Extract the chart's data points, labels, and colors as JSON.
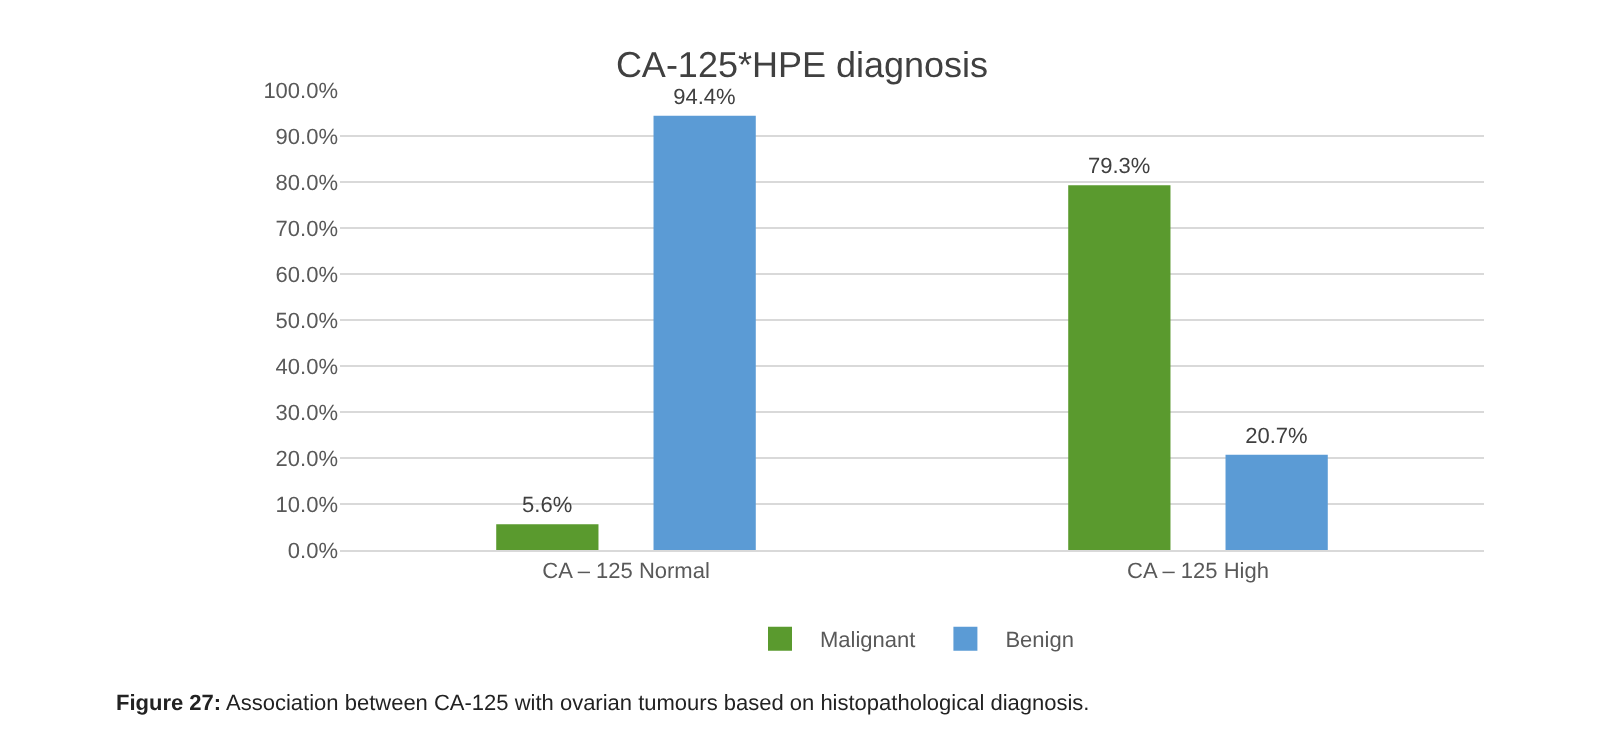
{
  "chart_data": {
    "type": "bar",
    "title": "CA-125*HPE diagnosis",
    "categories": [
      "CA – 125 Normal",
      "CA – 125 High"
    ],
    "series": [
      {
        "name": "Malignant",
        "color": "#5a9a2e",
        "values": [
          5.6,
          79.3
        ],
        "value_labels": [
          "5.6%",
          "79.3%"
        ]
      },
      {
        "name": "Benign",
        "color": "#5b9bd5",
        "values": [
          94.4,
          20.7
        ],
        "value_labels": [
          "94.4%",
          "20.7%"
        ]
      }
    ],
    "ylim": [
      0,
      100
    ],
    "yticks": [
      {
        "value": 0,
        "label": "0.0%"
      },
      {
        "value": 10,
        "label": "10.0%"
      },
      {
        "value": 20,
        "label": "20.0%"
      },
      {
        "value": 30,
        "label": "30.0%"
      },
      {
        "value": 40,
        "label": "40.0%"
      },
      {
        "value": 50,
        "label": "50.0%"
      },
      {
        "value": 60,
        "label": "60.0%"
      },
      {
        "value": 70,
        "label": "70.0%"
      },
      {
        "value": 80,
        "label": "80.0%"
      },
      {
        "value": 90,
        "label": "90.0%"
      },
      {
        "value": 100,
        "label": "100.0%"
      }
    ],
    "grid": "y",
    "legend": "bottom",
    "annotations": [
      "Figure 27: Association between CA-125 with ovarian tumours based on histopathological diagnosis."
    ]
  }
}
